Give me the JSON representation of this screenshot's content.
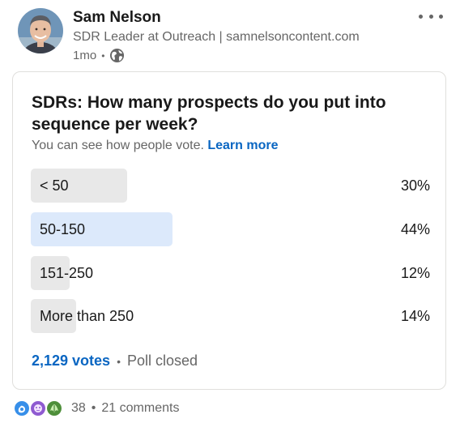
{
  "post": {
    "author_name": "Sam Nelson",
    "author_headline": "SDR Leader at Outreach | samnelsoncontent.com",
    "timestamp": "1mo",
    "visibility_icon": "globe-icon",
    "more_icon": "more-horizontal-icon"
  },
  "poll": {
    "question": "SDRs: How many prospects do you put into sequence per week?",
    "note": "You can see how people vote.",
    "learn_more": "Learn more",
    "options": [
      {
        "label": "< 50",
        "percent_text": "30%",
        "percent": 30,
        "selected": false
      },
      {
        "label": "50-150",
        "percent_text": "44%",
        "percent": 44,
        "selected": true
      },
      {
        "label": "151-250",
        "percent_text": "12%",
        "percent": 12,
        "selected": false
      },
      {
        "label": "More than 250",
        "percent_text": "14%",
        "percent": 14,
        "selected": false
      }
    ],
    "votes": "2,129 votes",
    "status": "Poll closed"
  },
  "social": {
    "reaction_icons": [
      "celebrate-icon",
      "curious-icon",
      "insightful-icon"
    ],
    "reaction_count": "38",
    "comments": "21 comments"
  },
  "colors": {
    "accent": "#0a66c2",
    "bar": "#e8e8e8",
    "bar_selected": "#dce9fb"
  }
}
